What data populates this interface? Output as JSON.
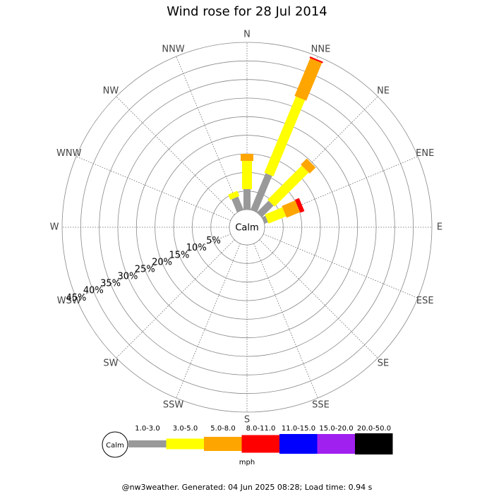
{
  "chart_data": {
    "type": "windrose",
    "title": "Wind rose for 28 Jul 2014",
    "directions": [
      "N",
      "NNE",
      "NE",
      "ENE",
      "E",
      "ESE",
      "SE",
      "SSE",
      "S",
      "SSW",
      "SW",
      "WSW",
      "W",
      "WNW",
      "NW",
      "NNW"
    ],
    "calm_label": "Calm",
    "unit": "mph",
    "rlim": [
      0,
      45
    ],
    "rticks": [
      {
        "value": 5,
        "label": "5%"
      },
      {
        "value": 10,
        "label": "10%"
      },
      {
        "value": 15,
        "label": "15%"
      },
      {
        "value": 20,
        "label": "20%"
      },
      {
        "value": 25,
        "label": "25%"
      },
      {
        "value": 30,
        "label": "30%"
      },
      {
        "value": 35,
        "label": "35%"
      },
      {
        "value": 40,
        "label": "40%"
      },
      {
        "value": 45,
        "label": "45%"
      }
    ],
    "series": [
      {
        "name": "1.0-3.0",
        "color": "#999999",
        "values": [
          5.5,
          10.6,
          4.4,
          1.0,
          0,
          0,
          0,
          0,
          0,
          0,
          0,
          0,
          0,
          0,
          0,
          3.8
        ]
      },
      {
        "name": "3.0-5.0",
        "color": "#ffff00",
        "values": [
          7.6,
          22.2,
          13.0,
          5.1,
          0,
          0,
          0,
          0,
          0,
          0,
          0,
          0,
          0,
          0,
          0,
          1.5
        ]
      },
      {
        "name": "5.0-8.0",
        "color": "#ffa500",
        "values": [
          1.9,
          11.0,
          2.3,
          3.9,
          0,
          0,
          0,
          0,
          0,
          0,
          0,
          0,
          0,
          0,
          0,
          0
        ]
      },
      {
        "name": "8.0-11.0",
        "color": "#ff0000",
        "values": [
          0,
          0.4,
          0,
          1.2,
          0,
          0,
          0,
          0,
          0,
          0,
          0,
          0,
          0,
          0,
          0,
          0
        ]
      },
      {
        "name": "11.0-15.0",
        "color": "#0000ff",
        "values": [
          0,
          0,
          0,
          0,
          0,
          0,
          0,
          0,
          0,
          0,
          0,
          0,
          0,
          0,
          0,
          0
        ]
      },
      {
        "name": "15.0-20.0",
        "color": "#a020f0",
        "values": [
          0,
          0,
          0,
          0,
          0,
          0,
          0,
          0,
          0,
          0,
          0,
          0,
          0,
          0,
          0,
          0
        ]
      },
      {
        "name": "20.0-50.0",
        "color": "#000000",
        "values": [
          0,
          0,
          0,
          0,
          0,
          0,
          0,
          0,
          0,
          0,
          0,
          0,
          0,
          0,
          0,
          0
        ]
      }
    ]
  },
  "footer": "@nw3weather. Generated: 04 Jun 2025 08:28; Load time: 0.94 s"
}
